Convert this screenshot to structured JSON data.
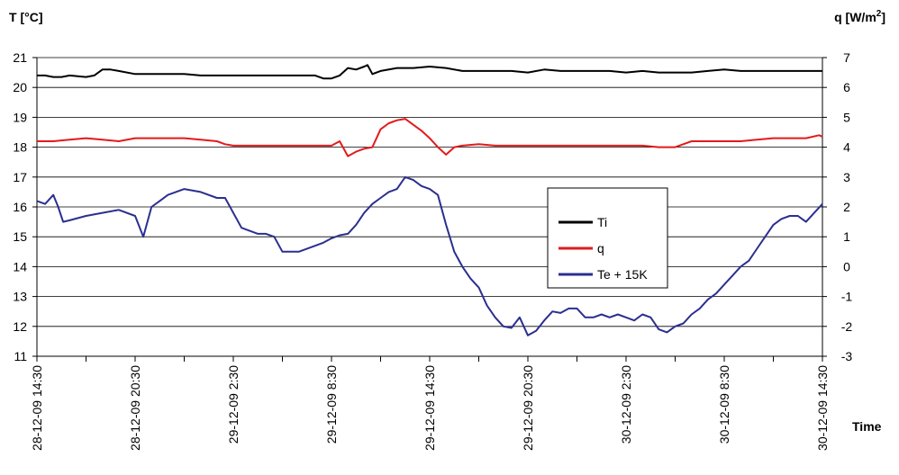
{
  "chart_data": {
    "type": "line",
    "title": "",
    "y_left": {
      "label": "T [°C]",
      "range": [
        11,
        21
      ],
      "ticks": [
        11,
        12,
        13,
        14,
        15,
        16,
        17,
        18,
        19,
        20,
        21
      ]
    },
    "y_right": {
      "label_main": "q [W/m",
      "label_sup": "2",
      "label_end": "]",
      "range": [
        -3,
        7
      ],
      "ticks": [
        -3,
        -2,
        -1,
        0,
        1,
        2,
        3,
        4,
        5,
        6,
        7
      ]
    },
    "x": {
      "label": "Time",
      "range_hours": [
        0,
        48
      ],
      "tick_labels": [
        "28-12-09 14:30",
        "28-12-09 20:30",
        "29-12-09 2:30",
        "29-12-09 8:30",
        "29-12-09 14:30",
        "29-12-09 20:30",
        "30-12-09 2:30",
        "30-12-09 8:30",
        "30-12-09 14:30"
      ],
      "tick_positions": [
        0,
        6,
        12,
        18,
        24,
        30,
        36,
        42,
        48
      ],
      "minor_ticks": [
        3,
        9,
        15,
        21,
        27,
        33,
        39,
        45
      ]
    },
    "grid": "horizontal",
    "legend_position": "inside-right",
    "series": [
      {
        "name": "Ti",
        "axis": "left",
        "color": "#000000",
        "x": [
          0,
          0.5,
          1,
          1.5,
          2,
          3,
          3.5,
          4,
          4.5,
          5,
          6,
          7,
          8,
          9,
          10,
          11,
          12,
          13,
          14,
          15,
          16,
          17,
          17.5,
          18,
          18.5,
          19,
          19.5,
          20,
          20.2,
          20.5,
          21,
          22,
          23,
          24,
          25,
          26,
          27,
          28,
          29,
          30,
          31,
          32,
          33,
          34,
          35,
          36,
          37,
          38,
          39,
          40,
          41,
          42,
          43,
          44,
          45,
          46,
          47,
          48
        ],
        "y": [
          20.4,
          20.4,
          20.35,
          20.35,
          20.4,
          20.35,
          20.4,
          20.6,
          20.6,
          20.55,
          20.45,
          20.45,
          20.45,
          20.45,
          20.4,
          20.4,
          20.4,
          20.4,
          20.4,
          20.4,
          20.4,
          20.4,
          20.3,
          20.3,
          20.4,
          20.65,
          20.6,
          20.7,
          20.75,
          20.45,
          20.55,
          20.65,
          20.65,
          20.7,
          20.65,
          20.55,
          20.55,
          20.55,
          20.55,
          20.5,
          20.6,
          20.55,
          20.55,
          20.55,
          20.55,
          20.5,
          20.55,
          20.5,
          20.5,
          20.5,
          20.55,
          20.6,
          20.55,
          20.55,
          20.55,
          20.55,
          20.55,
          20.55
        ]
      },
      {
        "name": "q",
        "axis": "right",
        "color": "#e31a1c",
        "x": [
          0,
          1,
          2,
          3,
          4,
          5,
          6,
          7,
          8,
          9,
          10,
          11,
          11.5,
          12,
          13,
          14,
          15,
          16,
          17,
          18,
          18.5,
          19,
          19.5,
          20,
          20.5,
          21,
          21.5,
          22,
          22.5,
          23,
          23.5,
          24,
          24.5,
          25,
          25.5,
          26,
          27,
          28,
          29,
          30,
          31,
          32,
          33,
          34,
          35,
          36,
          37,
          38,
          39,
          40,
          41,
          42,
          43,
          44,
          45,
          46,
          47,
          47.8,
          48
        ],
        "y": [
          4.2,
          4.2,
          4.25,
          4.3,
          4.25,
          4.2,
          4.3,
          4.3,
          4.3,
          4.3,
          4.25,
          4.2,
          4.1,
          4.05,
          4.05,
          4.05,
          4.05,
          4.05,
          4.05,
          4.05,
          4.2,
          3.7,
          3.85,
          3.95,
          4.0,
          4.6,
          4.8,
          4.9,
          4.95,
          4.75,
          4.55,
          4.3,
          4.0,
          3.75,
          4.0,
          4.05,
          4.1,
          4.05,
          4.05,
          4.05,
          4.05,
          4.05,
          4.05,
          4.05,
          4.05,
          4.05,
          4.05,
          4.0,
          4.0,
          4.2,
          4.2,
          4.2,
          4.2,
          4.25,
          4.3,
          4.3,
          4.3,
          4.4,
          4.35
        ]
      },
      {
        "name": "Te + 15K",
        "axis": "left",
        "color": "#2b2f8f",
        "x": [
          0,
          0.5,
          1,
          1.3,
          1.6,
          2,
          3,
          4,
          5,
          6,
          6.5,
          7,
          7.5,
          8,
          9,
          10,
          11,
          11.5,
          12,
          12.5,
          13,
          13.5,
          14,
          14.5,
          15,
          15.5,
          16,
          17,
          17.5,
          18,
          18.5,
          19,
          19.5,
          20,
          20.5,
          21,
          21.5,
          22,
          22.5,
          23,
          23.5,
          24,
          24.5,
          25,
          25.5,
          26,
          26.5,
          27,
          27.5,
          28,
          28.5,
          29,
          29.5,
          30,
          30.5,
          31,
          31.5,
          32,
          32.5,
          33,
          33.5,
          34,
          34.5,
          35,
          35.5,
          36,
          36.5,
          37,
          37.5,
          38,
          38.5,
          39,
          39.5,
          40,
          40.5,
          41,
          41.5,
          42,
          42.5,
          43,
          43.5,
          44,
          44.5,
          45,
          45.5,
          46,
          46.5,
          47,
          47.5,
          48
        ],
        "y": [
          16.2,
          16.1,
          16.4,
          16.0,
          15.5,
          15.55,
          15.7,
          15.8,
          15.9,
          15.7,
          15.0,
          16.0,
          16.2,
          16.4,
          16.6,
          16.5,
          16.3,
          16.3,
          15.8,
          15.3,
          15.2,
          15.1,
          15.1,
          15.0,
          14.5,
          14.5,
          14.5,
          14.7,
          14.8,
          14.95,
          15.05,
          15.1,
          15.4,
          15.8,
          16.1,
          16.3,
          16.5,
          16.6,
          17.0,
          16.9,
          16.7,
          16.6,
          16.4,
          15.4,
          14.5,
          14.0,
          13.6,
          13.3,
          12.7,
          12.3,
          12.0,
          11.95,
          12.3,
          11.7,
          11.85,
          12.2,
          12.5,
          12.45,
          12.6,
          12.6,
          12.3,
          12.3,
          12.4,
          12.3,
          12.4,
          12.3,
          12.2,
          12.4,
          12.3,
          11.9,
          11.8,
          12.0,
          12.1,
          12.4,
          12.6,
          12.9,
          13.1,
          13.4,
          13.7,
          14.0,
          14.2,
          14.6,
          15.0,
          15.4,
          15.6,
          15.7,
          15.7,
          15.5,
          15.8,
          16.1
        ]
      }
    ],
    "legend": [
      "Ti",
      "q",
      "Te + 15K"
    ]
  }
}
